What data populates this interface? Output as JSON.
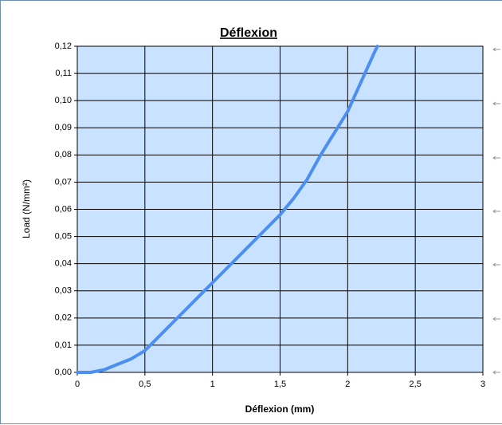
{
  "chart_data": {
    "type": "line",
    "title": "Déflexion",
    "xlabel": "Déflexion (mm)",
    "ylabel": "Load (N/mm²)",
    "x": [
      0,
      0.1,
      0.2,
      0.3,
      0.4,
      0.5,
      0.6,
      0.7,
      0.8,
      0.9,
      1.0,
      1.1,
      1.2,
      1.3,
      1.4,
      1.5,
      1.6,
      1.7,
      1.8,
      1.9,
      2.0,
      2.1,
      2.2,
      2.22
    ],
    "series": [
      {
        "name": "Load",
        "color": "#4d8ff0",
        "values": [
          0,
          0,
          0.001,
          0.003,
          0.005,
          0.008,
          0.013,
          0.018,
          0.023,
          0.028,
          0.033,
          0.038,
          0.043,
          0.048,
          0.053,
          0.058,
          0.064,
          0.071,
          0.08,
          0.088,
          0.096,
          0.107,
          0.118,
          0.12
        ]
      }
    ],
    "xlim": [
      0,
      3
    ],
    "xticks": [
      0,
      {
        "value": 0.5,
        "label": "0,5"
      },
      1,
      {
        "value": 1.5,
        "label": "1,5"
      },
      2,
      {
        "value": 2.5,
        "label": "2,5"
      },
      3
    ],
    "ylim": [
      0,
      0.12
    ],
    "yticks": [
      {
        "value": 0,
        "label": "0,00"
      },
      {
        "value": 0.01,
        "label": "0,01"
      },
      {
        "value": 0.02,
        "label": "0,02"
      },
      {
        "value": 0.03,
        "label": "0,03"
      },
      {
        "value": 0.04,
        "label": "0,04"
      },
      {
        "value": 0.05,
        "label": "0,05"
      },
      {
        "value": 0.06,
        "label": "0,06"
      },
      {
        "value": 0.07,
        "label": "0,07"
      },
      {
        "value": 0.08,
        "label": "0,08"
      },
      {
        "value": 0.09,
        "label": "0,09"
      },
      {
        "value": 0.1,
        "label": "0,10"
      },
      {
        "value": 0.11,
        "label": "0,11"
      },
      {
        "value": 0.12,
        "label": "0,12"
      }
    ],
    "grid": true,
    "plot_background": "#c9e2ff"
  }
}
